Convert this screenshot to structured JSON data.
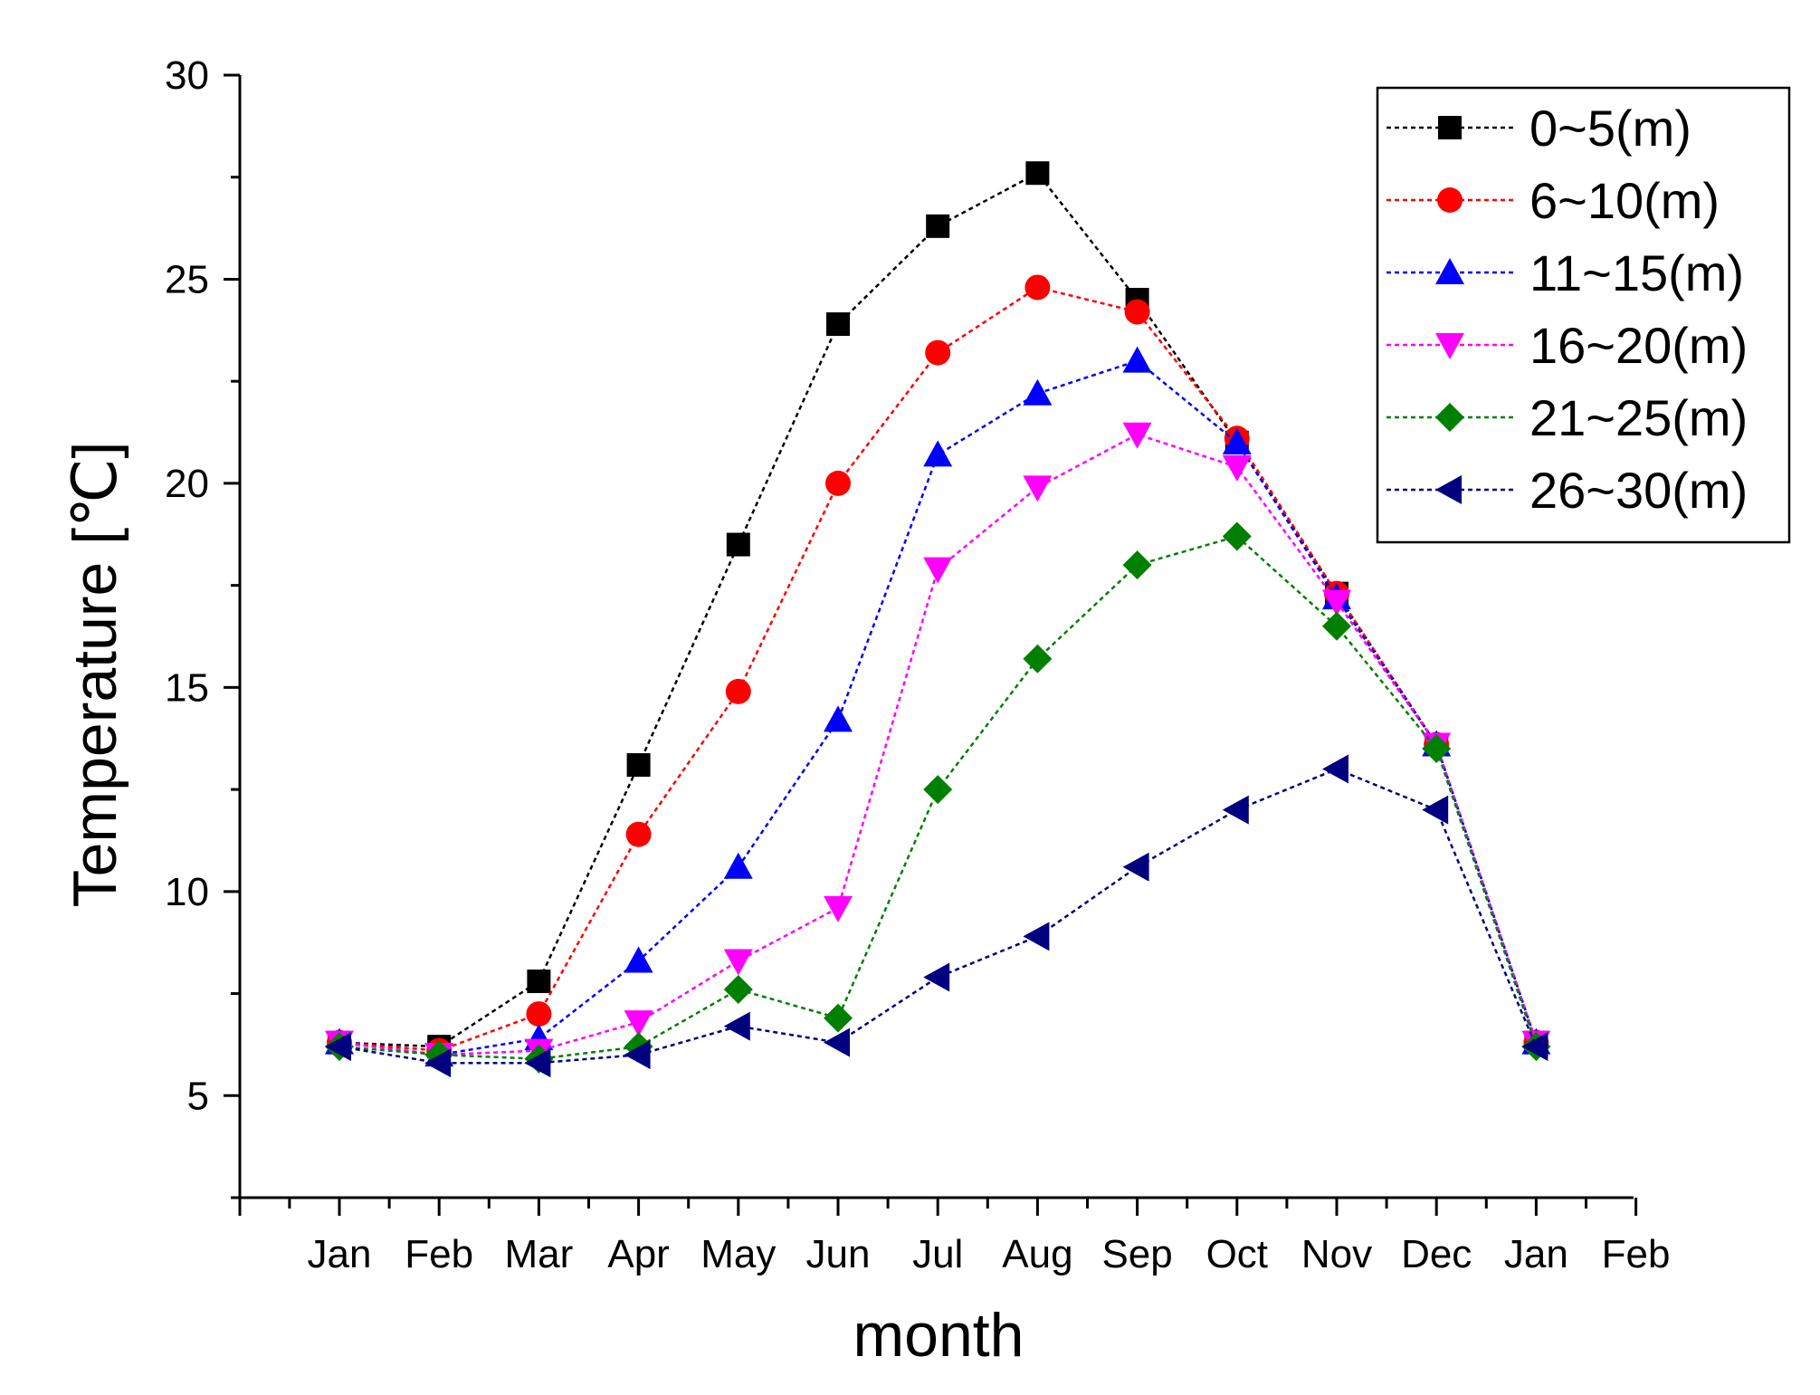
{
  "chart_data": {
    "type": "line",
    "title": "",
    "xlabel": "month",
    "ylabel": "Temperature [℃]",
    "x_tick_labels": [
      "Jan",
      "Feb",
      "Mar",
      "Apr",
      "May",
      "Jun",
      "Jul",
      "Aug",
      "Sep",
      "Oct",
      "Nov",
      "Dec",
      "Jan",
      "Feb"
    ],
    "categories": [
      "Jan",
      "Feb",
      "Mar",
      "Apr",
      "May",
      "Jun",
      "Jul",
      "Aug",
      "Sep",
      "Oct",
      "Nov",
      "Dec",
      "Jan"
    ],
    "ylim": [
      2.5,
      30
    ],
    "y_ticks": [
      5,
      10,
      15,
      20,
      25,
      30
    ],
    "grid": false,
    "legend_position": "top-right",
    "series": [
      {
        "name": "0~5(m)",
        "color": "#000000",
        "marker": "square",
        "values": [
          6.3,
          6.2,
          7.8,
          13.1,
          18.5,
          23.9,
          26.3,
          27.6,
          24.5,
          21.0,
          17.3,
          13.6,
          6.3
        ]
      },
      {
        "name": "6~10(m)",
        "color": "#ff0000",
        "marker": "circle",
        "values": [
          6.3,
          6.1,
          7.0,
          11.4,
          14.9,
          20.0,
          23.2,
          24.8,
          24.2,
          21.1,
          17.3,
          13.6,
          6.3
        ]
      },
      {
        "name": "11~15(m)",
        "color": "#0000ff",
        "marker": "triangle-up",
        "values": [
          6.3,
          6.0,
          6.4,
          8.3,
          10.6,
          14.2,
          20.7,
          22.2,
          23.0,
          21.0,
          17.2,
          13.6,
          6.3
        ]
      },
      {
        "name": "16~20(m)",
        "color": "#ff00ff",
        "marker": "triangle-down",
        "values": [
          6.3,
          6.0,
          6.1,
          6.8,
          8.3,
          9.6,
          17.9,
          19.9,
          21.2,
          20.4,
          17.1,
          13.6,
          6.3
        ]
      },
      {
        "name": "21~25(m)",
        "color": "#008000",
        "marker": "diamond",
        "values": [
          6.2,
          6.0,
          5.9,
          6.2,
          7.6,
          6.9,
          12.5,
          15.7,
          18.0,
          18.7,
          16.5,
          13.5,
          6.2
        ]
      },
      {
        "name": "26~30(m)",
        "color": "#000080",
        "marker": "triangle-left",
        "values": [
          6.2,
          5.8,
          5.8,
          6.0,
          6.7,
          6.3,
          7.9,
          8.9,
          10.6,
          12.0,
          13.0,
          12.0,
          6.2
        ]
      }
    ]
  }
}
